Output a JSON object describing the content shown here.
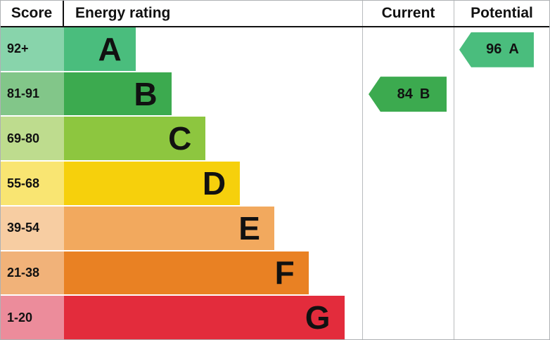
{
  "header": {
    "score": "Score",
    "energy_rating": "Energy rating",
    "current": "Current",
    "potential": "Potential"
  },
  "chart_data": {
    "type": "bar",
    "bands": [
      {
        "score": "92+",
        "letter": "A",
        "bar_color": "#4abd7d",
        "score_color": "#88d4ab",
        "bar_width_pct": 24
      },
      {
        "score": "81-91",
        "letter": "B",
        "bar_color": "#3caa4f",
        "score_color": "#82c689",
        "bar_width_pct": 36
      },
      {
        "score": "69-80",
        "letter": "C",
        "bar_color": "#8dc63f",
        "score_color": "#bedc8e",
        "bar_width_pct": 47.5
      },
      {
        "score": "55-68",
        "letter": "D",
        "bar_color": "#f6d00c",
        "score_color": "#f9e572",
        "bar_width_pct": 59
      },
      {
        "score": "39-54",
        "letter": "E",
        "bar_color": "#f2a95e",
        "score_color": "#f7cda2",
        "bar_width_pct": 70.5
      },
      {
        "score": "21-38",
        "letter": "F",
        "bar_color": "#e98123",
        "score_color": "#f1b279",
        "bar_width_pct": 82
      },
      {
        "score": "1-20",
        "letter": "G",
        "bar_color": "#e32c3c",
        "score_color": "#ec8c9b",
        "bar_width_pct": 94
      }
    ],
    "current": {
      "value": "84",
      "band": "B",
      "color": "#3caa4f"
    },
    "potential": {
      "value": "96",
      "band": "A",
      "color": "#4abd7d"
    }
  }
}
